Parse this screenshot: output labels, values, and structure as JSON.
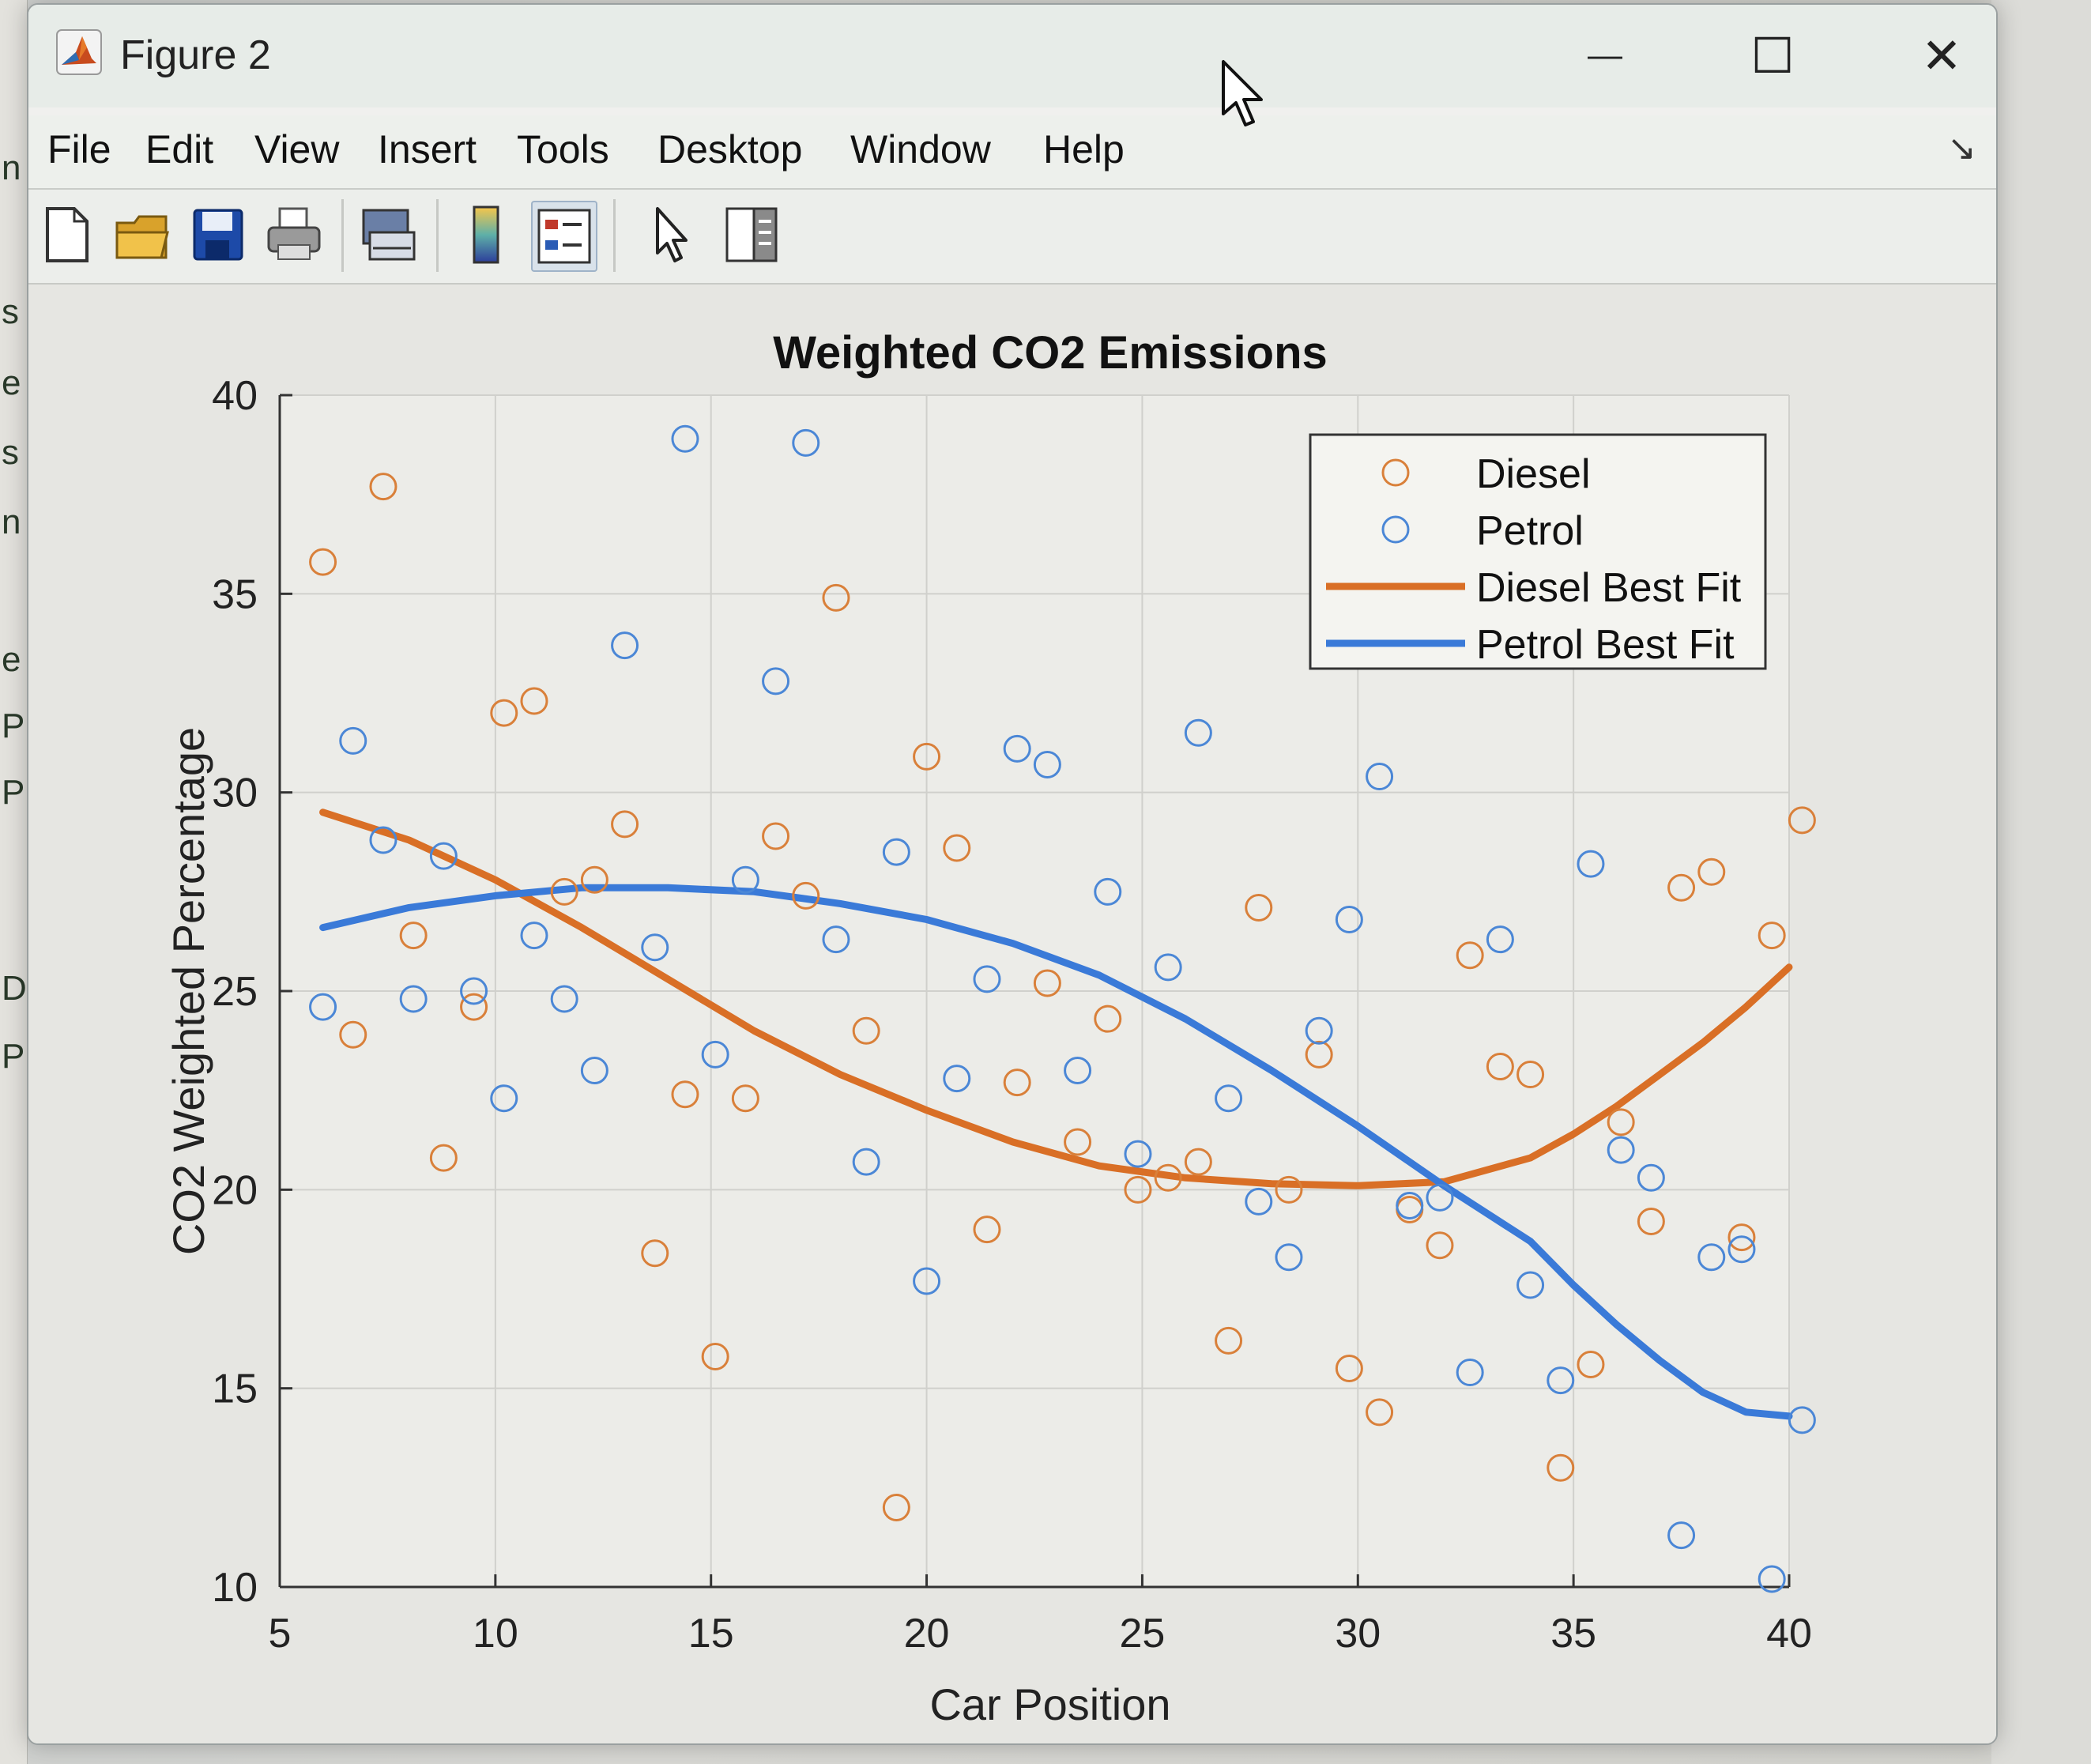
{
  "window": {
    "title": "Figure 2",
    "minimize_glyph": "—",
    "maximize_glyph": "☐",
    "close_glyph": "✕",
    "icon": "matlab-icon"
  },
  "menu": [
    "File",
    "Edit",
    "View",
    "Insert",
    "Tools",
    "Desktop",
    "Window",
    "Help"
  ],
  "menu_dock_glyph": "↘",
  "toolbar": [
    {
      "icon": "new-figure-icon"
    },
    {
      "icon": "open-file-icon"
    },
    {
      "icon": "save-icon"
    },
    {
      "icon": "print-icon"
    },
    {
      "icon": "link-plot-icon"
    },
    {
      "icon": "colorbar-icon"
    },
    {
      "icon": "legend-icon",
      "pressed": true
    },
    {
      "icon": "pointer-icon"
    },
    {
      "icon": "property-inspector-icon"
    }
  ],
  "background_fragments": [
    "n",
    "s",
    "e",
    "s",
    "n",
    "e",
    "P",
    "P",
    "D",
    "P"
  ],
  "colors": {
    "diesel": "#d9803a",
    "petrol": "#4b87d6",
    "diesel_fit": "#d96f26",
    "petrol_fit": "#3a7ad8"
  },
  "chart_data": {
    "type": "scatter",
    "title": "Weighted CO2 Emissions",
    "xlabel": "Car Position",
    "ylabel": "CO2 Weighted Percentage",
    "xlim": [
      5,
      40
    ],
    "ylim": [
      10,
      40
    ],
    "xticks": [
      5,
      10,
      15,
      20,
      25,
      30,
      35,
      40
    ],
    "yticks": [
      10,
      15,
      20,
      25,
      30,
      35,
      40
    ],
    "grid": true,
    "legend_position": "top-right",
    "series": [
      {
        "name": "Diesel",
        "kind": "markers",
        "points": [
          [
            6,
            35.8
          ],
          [
            6.7,
            23.9
          ],
          [
            7.4,
            37.7
          ],
          [
            8.1,
            26.4
          ],
          [
            8.8,
            20.8
          ],
          [
            9.5,
            24.6
          ],
          [
            10.2,
            32
          ],
          [
            10.9,
            32.3
          ],
          [
            11.6,
            27.5
          ],
          [
            12.3,
            27.8
          ],
          [
            13,
            29.2
          ],
          [
            13.7,
            18.4
          ],
          [
            14.4,
            22.4
          ],
          [
            15.1,
            15.8
          ],
          [
            15.8,
            22.3
          ],
          [
            16.5,
            28.9
          ],
          [
            17.2,
            27.4
          ],
          [
            17.9,
            34.9
          ],
          [
            18.6,
            24
          ],
          [
            19.3,
            12
          ],
          [
            20,
            30.9
          ],
          [
            20.7,
            28.6
          ],
          [
            21.4,
            19
          ],
          [
            22.1,
            22.7
          ],
          [
            22.8,
            25.2
          ],
          [
            23.5,
            21.2
          ],
          [
            24.2,
            24.3
          ],
          [
            24.9,
            20
          ],
          [
            25.6,
            20.3
          ],
          [
            26.3,
            20.7
          ],
          [
            27,
            16.2
          ],
          [
            27.7,
            27.1
          ],
          [
            28.4,
            20
          ],
          [
            29.1,
            23.4
          ],
          [
            29.8,
            15.5
          ],
          [
            30.5,
            14.4
          ],
          [
            31.2,
            19.5
          ],
          [
            31.9,
            18.6
          ],
          [
            32.6,
            25.9
          ],
          [
            33.3,
            23.1
          ],
          [
            34,
            22.9
          ],
          [
            34.7,
            13
          ],
          [
            35.4,
            15.6
          ],
          [
            36.1,
            21.7
          ],
          [
            36.8,
            19.2
          ],
          [
            37.5,
            27.6
          ],
          [
            38.2,
            28
          ],
          [
            38.9,
            18.8
          ],
          [
            39.6,
            26.4
          ],
          [
            40.3,
            29.3
          ]
        ]
      },
      {
        "name": "Petrol",
        "kind": "markers",
        "points": [
          [
            6,
            24.6
          ],
          [
            6.7,
            31.3
          ],
          [
            7.4,
            28.8
          ],
          [
            8.1,
            24.8
          ],
          [
            8.8,
            28.4
          ],
          [
            9.5,
            25
          ],
          [
            10.2,
            22.3
          ],
          [
            10.9,
            26.4
          ],
          [
            11.6,
            24.8
          ],
          [
            12.3,
            23
          ],
          [
            13,
            33.7
          ],
          [
            13.7,
            26.1
          ],
          [
            14.4,
            38.9
          ],
          [
            15.1,
            23.4
          ],
          [
            15.8,
            27.8
          ],
          [
            16.5,
            32.8
          ],
          [
            17.2,
            38.8
          ],
          [
            17.9,
            26.3
          ],
          [
            18.6,
            20.7
          ],
          [
            19.3,
            28.5
          ],
          [
            20,
            17.7
          ],
          [
            20.7,
            22.8
          ],
          [
            21.4,
            25.3
          ],
          [
            22.1,
            31.1
          ],
          [
            22.8,
            30.7
          ],
          [
            23.5,
            23
          ],
          [
            24.2,
            27.5
          ],
          [
            24.9,
            20.9
          ],
          [
            25.6,
            25.6
          ],
          [
            26.3,
            31.5
          ],
          [
            27,
            22.3
          ],
          [
            27.7,
            19.7
          ],
          [
            28.4,
            18.3
          ],
          [
            29.1,
            24
          ],
          [
            29.8,
            26.8
          ],
          [
            30.5,
            30.4
          ],
          [
            31.2,
            19.6
          ],
          [
            31.9,
            19.8
          ],
          [
            32.6,
            15.4
          ],
          [
            33.3,
            26.3
          ],
          [
            34,
            17.6
          ],
          [
            34.7,
            15.2
          ],
          [
            35.4,
            28.2
          ],
          [
            36.1,
            21
          ],
          [
            36.8,
            20.3
          ],
          [
            37.5,
            11.3
          ],
          [
            38.2,
            18.3
          ],
          [
            38.9,
            18.5
          ],
          [
            39.6,
            10.2
          ],
          [
            40.3,
            14.2
          ]
        ]
      },
      {
        "name": "Diesel Best Fit",
        "kind": "line",
        "points": [
          [
            6,
            29.5
          ],
          [
            8,
            28.8
          ],
          [
            10,
            27.8
          ],
          [
            12,
            26.6
          ],
          [
            14,
            25.3
          ],
          [
            16,
            24
          ],
          [
            18,
            22.9
          ],
          [
            20,
            22
          ],
          [
            22,
            21.2
          ],
          [
            24,
            20.6
          ],
          [
            26,
            20.3
          ],
          [
            28,
            20.15
          ],
          [
            30,
            20.1
          ],
          [
            32,
            20.2
          ],
          [
            34,
            20.8
          ],
          [
            35,
            21.4
          ],
          [
            36,
            22.1
          ],
          [
            37,
            22.9
          ],
          [
            38,
            23.7
          ],
          [
            39,
            24.6
          ],
          [
            40,
            25.6
          ]
        ]
      },
      {
        "name": "Petrol Best Fit",
        "kind": "line",
        "points": [
          [
            6,
            26.6
          ],
          [
            8,
            27.1
          ],
          [
            10,
            27.4
          ],
          [
            12,
            27.6
          ],
          [
            14,
            27.6
          ],
          [
            16,
            27.5
          ],
          [
            18,
            27.2
          ],
          [
            20,
            26.8
          ],
          [
            22,
            26.2
          ],
          [
            24,
            25.4
          ],
          [
            26,
            24.3
          ],
          [
            28,
            23
          ],
          [
            30,
            21.6
          ],
          [
            32,
            20.1
          ],
          [
            34,
            18.7
          ],
          [
            35,
            17.6
          ],
          [
            36,
            16.6
          ],
          [
            37,
            15.7
          ],
          [
            38,
            14.9
          ],
          [
            39,
            14.4
          ],
          [
            40,
            14.3
          ]
        ]
      }
    ]
  }
}
